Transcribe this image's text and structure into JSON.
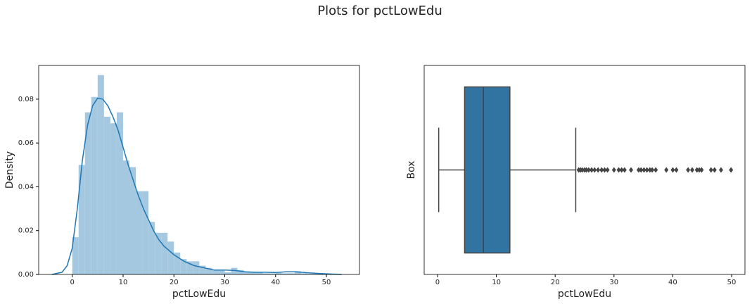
{
  "title": "Plots for pctLowEdu",
  "chart_data": [
    {
      "type": "histogram",
      "xlabel": "pctLowEdu",
      "ylabel": "Density",
      "color": "#a5c8e1",
      "bins": [
        0,
        1.25,
        2.5,
        3.75,
        5,
        6.25,
        7.5,
        8.75,
        10,
        11.25,
        12.5,
        13.75,
        15,
        16.25,
        17.5,
        18.75,
        20,
        21.25,
        22.5,
        23.75,
        25,
        26.25,
        27.5,
        28.75,
        30,
        31.25,
        32.5,
        33.75,
        35,
        36.25,
        37.5,
        38.75,
        40,
        41.25,
        42.5,
        43.75,
        45,
        46.25,
        47.5,
        48.75,
        50
      ],
      "values": [
        0.017,
        0.05,
        0.074,
        0.081,
        0.091,
        0.072,
        0.069,
        0.074,
        0.052,
        0.049,
        0.038,
        0.038,
        0.024,
        0.019,
        0.019,
        0.015,
        0.01,
        0.007,
        0.006,
        0.006,
        0.004,
        0.003,
        0.002,
        0.002,
        0.001,
        0.003,
        0.002,
        0.001,
        0.001,
        0.001,
        0.0005,
        0.0005,
        0.0007,
        0.0005,
        0.0005,
        0.0015,
        0.0005,
        0.0003,
        0.0003,
        0.0003
      ],
      "kde": {
        "color": "#1f77b4",
        "x": [
          -4,
          -2,
          -1,
          0,
          1,
          2,
          3,
          4,
          5,
          6,
          7,
          8,
          9,
          10,
          11,
          12,
          13,
          14,
          15,
          16,
          17,
          18,
          20,
          22,
          24,
          26,
          28,
          30,
          32,
          34,
          36,
          38,
          40,
          42,
          44,
          46,
          48,
          50,
          53
        ],
        "y": [
          0,
          0.001,
          0.004,
          0.012,
          0.03,
          0.052,
          0.068,
          0.077,
          0.0805,
          0.08,
          0.077,
          0.072,
          0.066,
          0.058,
          0.05,
          0.043,
          0.036,
          0.03,
          0.025,
          0.02,
          0.016,
          0.013,
          0.009,
          0.006,
          0.004,
          0.003,
          0.002,
          0.002,
          0.0018,
          0.0012,
          0.001,
          0.001,
          0.0009,
          0.0012,
          0.0012,
          0.0008,
          0.0005,
          0.0003,
          0
        ]
      },
      "xlim": [
        -6.6,
        56.5
      ],
      "ylim": [
        0,
        0.0954
      ],
      "xticks": [
        0,
        10,
        20,
        30,
        40,
        50
      ],
      "yticks": [
        {
          "value": 0,
          "label": "0.00"
        },
        0.02,
        0.04,
        0.06,
        0.08
      ]
    },
    {
      "type": "box",
      "xlabel": "pctLowEdu",
      "ylabel": "Box",
      "color": "#3274a1",
      "whislo": 0.2,
      "q1": 4.6,
      "median": 7.8,
      "q3": 12.3,
      "whishi": 23.5,
      "fliers": [
        24,
        24.3,
        24.6,
        25,
        25.3,
        25.7,
        26.2,
        26.7,
        27.3,
        27.9,
        28.4,
        28.9,
        30,
        30.8,
        31.3,
        31.8,
        32.9,
        34.2,
        34.6,
        35.1,
        35.6,
        36.1,
        36.5,
        37.1,
        38.9,
        40,
        40.6,
        42.6,
        43.3,
        44.1,
        44.5,
        44.9,
        46.5,
        47.1,
        48.2,
        49.9
      ],
      "xlim": [
        -2.27,
        52.27
      ],
      "xticks": [
        0,
        10,
        20,
        30,
        40,
        50
      ]
    }
  ]
}
